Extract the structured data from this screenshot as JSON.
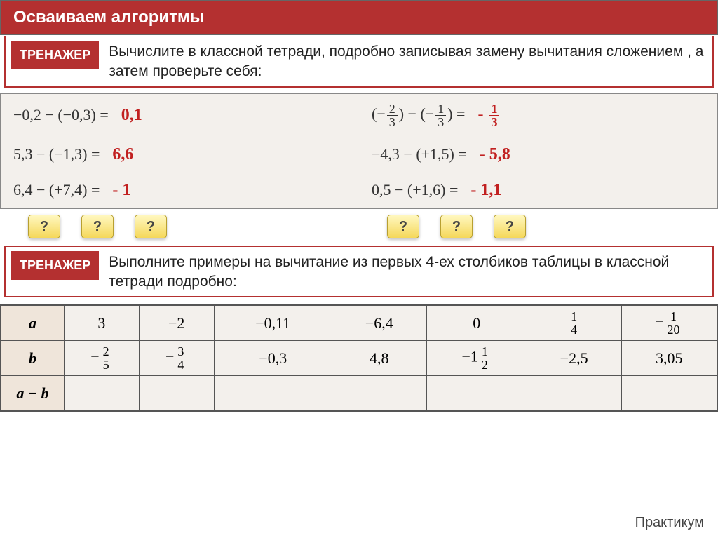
{
  "header": {
    "title": "Осваиваем алгоритмы"
  },
  "badge": "ТРЕНАЖЕР",
  "block1_text": "Вычислите в классной тетради, подробно записывая замену вычитания сложением , а затем проверьте себя:",
  "examples": [
    {
      "expr": "−0,2 − (−0,3)  =",
      "ans": "0,1"
    },
    {
      "expr_html": true,
      "ans": "- ",
      "ans_frac": {
        "n": "1",
        "d": "3"
      }
    },
    {
      "expr": "5,3 − (−1,3)  =",
      "ans": "6,6"
    },
    {
      "expr": "−4,3 − (+1,5)  =",
      "ans": "- 5,8"
    },
    {
      "expr": "6,4 − (+7,4)  =",
      "ans": "- 1"
    },
    {
      "expr": "0,5 − (+1,6)  =",
      "ans": "- 1,1"
    }
  ],
  "frac_expr": {
    "a": {
      "n": "2",
      "d": "3"
    },
    "b": {
      "n": "1",
      "d": "3"
    }
  },
  "q": "?",
  "block2_text": "Выполните примеры на вычитание из первых 4-ех столбиков таблицы в классной тетради подробно:",
  "table": {
    "rows": [
      "a",
      "b",
      "a − b"
    ],
    "a": [
      "3",
      "−2",
      "−0,11",
      "−6,4",
      "0"
    ],
    "a_frac6": {
      "n": "1",
      "d": "4"
    },
    "a_frac7": {
      "neg": "−",
      "n": "1",
      "d": "20"
    },
    "b_frac1": {
      "neg": "−",
      "n": "2",
      "d": "5"
    },
    "b_frac2": {
      "neg": "−",
      "n": "3",
      "d": "4"
    },
    "b": [
      "−0,3",
      "4,8"
    ],
    "b_mixed5": {
      "neg": "−1",
      "n": "1",
      "d": "2"
    },
    "b_rest": [
      "−2,5",
      "3,05"
    ]
  },
  "footer": "Практикум"
}
